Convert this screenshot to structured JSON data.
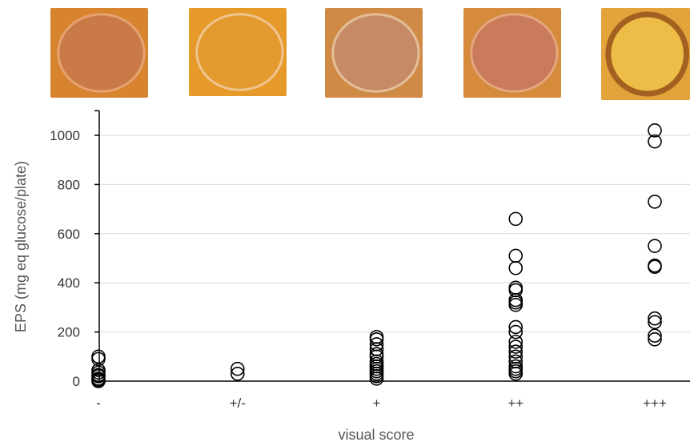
{
  "chart_data": {
    "type": "scatter",
    "title": "",
    "xlabel": "visual score",
    "ylabel": "EPS (mg eq glucose/plate)",
    "categories": [
      "-",
      "+/-",
      "+",
      "++",
      "+++"
    ],
    "ylim": [
      0,
      1100
    ],
    "yticks": [
      0,
      200,
      400,
      600,
      800,
      1000
    ],
    "grid": true,
    "marker": "open-circle",
    "marker_color": "#000000",
    "series": [
      {
        "values_by_category": [
          [
            0,
            5,
            10,
            20,
            25,
            35,
            45,
            90,
            100
          ],
          [
            30,
            50
          ],
          [
            10,
            20,
            30,
            40,
            50,
            60,
            70,
            80,
            100,
            110,
            130,
            150,
            170,
            180
          ],
          [
            30,
            40,
            50,
            60,
            80,
            100,
            120,
            140,
            160,
            200,
            220,
            310,
            320,
            330,
            370,
            380,
            460,
            510,
            660
          ],
          [
            170,
            185,
            240,
            255,
            465,
            470,
            550,
            730,
            975,
            1020
          ]
        ]
      }
    ]
  },
  "photos": [
    {
      "name": "plate-minus",
      "base": "#d8832e",
      "inner": "#c97a4a",
      "rim": "#e8a679"
    },
    {
      "name": "plate-plus-minus",
      "base": "#e59a2a",
      "inner": "#e39a30",
      "rim": "#f2c99a"
    },
    {
      "name": "plate-plus",
      "base": "#cf8a46",
      "inner": "#c68a6a",
      "rim": "#e7c4a2"
    },
    {
      "name": "plate-plus-plus",
      "base": "#d58a3c",
      "inner": "#c97a5f",
      "rim": "#e6aa84"
    },
    {
      "name": "plate-plus-plus-plus",
      "base": "#e3a23a",
      "inner": "#f0c04a",
      "rim": "#9c5a1e"
    }
  ]
}
